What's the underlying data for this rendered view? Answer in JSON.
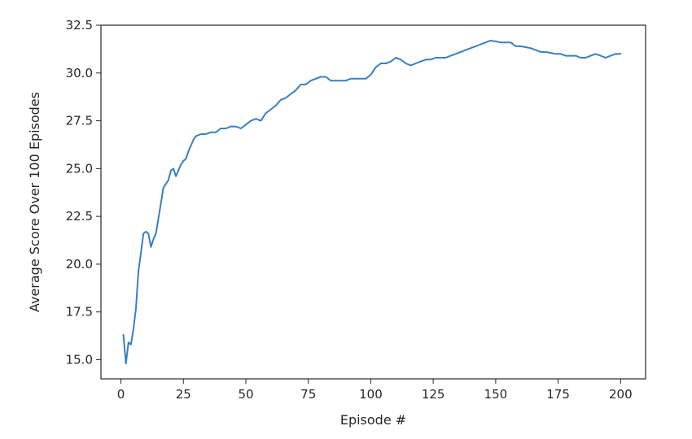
{
  "chart_data": {
    "type": "line",
    "title": "",
    "xlabel": "Episode #",
    "ylabel": "Average Score Over 100 Episodes",
    "xlim": [
      -8,
      210
    ],
    "ylim": [
      14.0,
      32.5
    ],
    "xticks": [
      0,
      25,
      50,
      75,
      100,
      125,
      150,
      175,
      200
    ],
    "xtick_labels": [
      "0",
      "25",
      "50",
      "75",
      "100",
      "125",
      "150",
      "175",
      "200"
    ],
    "yticks": [
      15.0,
      17.5,
      20.0,
      22.5,
      25.0,
      27.5,
      30.0,
      32.5
    ],
    "ytick_labels": [
      "15.0",
      "17.5",
      "20.0",
      "22.5",
      "25.0",
      "27.5",
      "30.0",
      "32.5"
    ],
    "grid": false,
    "line_color": "#3a7fc1",
    "series": [
      {
        "x": [
          1,
          2,
          3,
          4,
          5,
          6,
          7,
          8,
          9,
          10,
          11,
          12,
          13,
          14,
          15,
          16,
          17,
          18,
          19,
          20,
          21,
          22,
          23,
          24,
          25,
          26,
          27,
          28,
          29,
          30,
          32,
          34,
          36,
          38,
          40,
          42,
          44,
          46,
          48,
          50,
          52,
          54,
          56,
          58,
          60,
          62,
          64,
          66,
          68,
          70,
          72,
          74,
          76,
          78,
          80,
          82,
          84,
          86,
          88,
          90,
          92,
          94,
          96,
          98,
          100,
          102,
          104,
          106,
          108,
          110,
          112,
          114,
          116,
          118,
          120,
          122,
          124,
          126,
          128,
          130,
          132,
          134,
          136,
          138,
          140,
          142,
          144,
          146,
          148,
          150,
          152,
          154,
          156,
          158,
          160,
          162,
          164,
          166,
          168,
          170,
          172,
          174,
          176,
          178,
          180,
          182,
          184,
          186,
          188,
          190,
          192,
          194,
          196,
          198,
          200
        ],
        "values": [
          16.3,
          14.8,
          15.9,
          15.8,
          16.6,
          17.7,
          19.6,
          20.6,
          21.6,
          21.7,
          21.6,
          20.9,
          21.3,
          21.6,
          22.4,
          23.2,
          24.0,
          24.2,
          24.4,
          24.9,
          25.0,
          24.6,
          24.9,
          25.2,
          25.4,
          25.5,
          25.9,
          26.2,
          26.5,
          26.7,
          26.8,
          26.8,
          26.9,
          26.9,
          27.1,
          27.1,
          27.2,
          27.2,
          27.1,
          27.3,
          27.5,
          27.6,
          27.5,
          27.9,
          28.1,
          28.3,
          28.6,
          28.7,
          28.9,
          29.1,
          29.4,
          29.4,
          29.6,
          29.7,
          29.8,
          29.8,
          29.6,
          29.6,
          29.6,
          29.6,
          29.7,
          29.7,
          29.7,
          29.7,
          29.9,
          30.3,
          30.5,
          30.5,
          30.6,
          30.8,
          30.7,
          30.5,
          30.4,
          30.5,
          30.6,
          30.7,
          30.7,
          30.8,
          30.8,
          30.8,
          30.9,
          31.0,
          31.1,
          31.2,
          31.3,
          31.4,
          31.5,
          31.6,
          31.7,
          31.65,
          31.6,
          31.6,
          31.6,
          31.4,
          31.4,
          31.35,
          31.3,
          31.2,
          31.1,
          31.1,
          31.05,
          31.0,
          31.0,
          30.9,
          30.9,
          30.9,
          30.8,
          30.8,
          30.9,
          31.0,
          30.9,
          30.8,
          30.9,
          31.0,
          31.0
        ]
      }
    ]
  }
}
